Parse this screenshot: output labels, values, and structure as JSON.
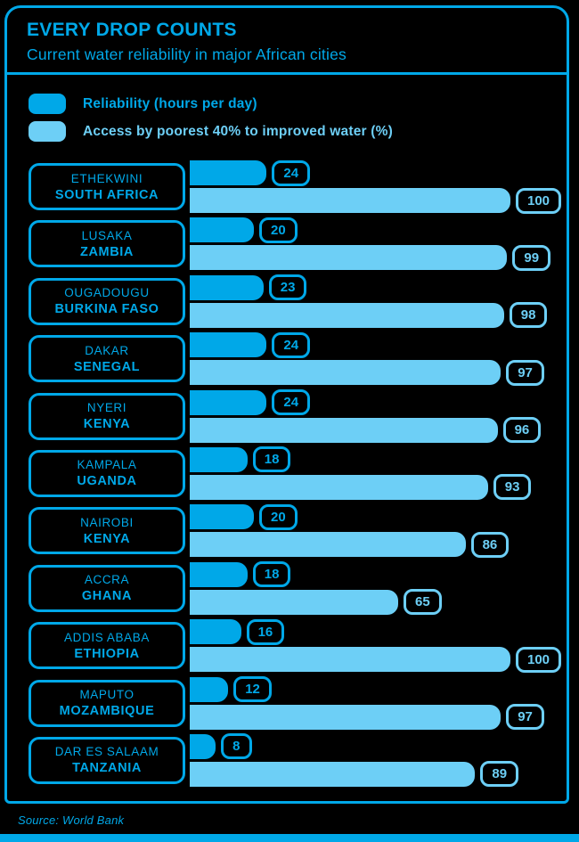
{
  "header": {
    "title": "EVERY DROP COUNTS",
    "subtitle": "Current water reliability in major African cities"
  },
  "legend": {
    "reliability_label": "Reliability (hours per day)",
    "access_label": "Access by poorest 40% to improved water (%)"
  },
  "chart_data": {
    "type": "bar",
    "orientation": "horizontal",
    "title": "EVERY DROP COUNTS",
    "subtitle": "Current water reliability in major African cities",
    "categories": [
      "ETHEKWINI, SOUTH AFRICA",
      "LUSAKA, ZAMBIA",
      "OUGADOUGU, BURKINA FASO",
      "DAKAR, SENEGAL",
      "NYERI, KENYA",
      "KAMPALA, UGANDA",
      "NAIROBI, KENYA",
      "ACCRA, GHANA",
      "ADDIS ABABA, ETHIOPIA",
      "MAPUTO, MOZAMBIQUE",
      "DAR ES SALAAM, TANZANIA"
    ],
    "series": [
      {
        "name": "Reliability (hours per day)",
        "values": [
          24,
          20,
          23,
          24,
          24,
          18,
          20,
          18,
          16,
          12,
          8
        ],
        "max": 24
      },
      {
        "name": "Access by poorest 40% to improved water (%)",
        "values": [
          100,
          99,
          98,
          97,
          96,
          93,
          86,
          65,
          100,
          97,
          89
        ],
        "max": 100
      }
    ],
    "value_axis_range": [
      0,
      100
    ],
    "grid": false,
    "legend_position": "top-left",
    "data_labels": "badge at end of each bar"
  },
  "rows": [
    {
      "city": "ETHEKWINI",
      "country": "SOUTH AFRICA",
      "hours": 24,
      "access": 100
    },
    {
      "city": "LUSAKA",
      "country": "ZAMBIA",
      "hours": 20,
      "access": 99
    },
    {
      "city": "OUGADOUGU",
      "country": "BURKINA FASO",
      "hours": 23,
      "access": 98
    },
    {
      "city": "DAKAR",
      "country": "SENEGAL",
      "hours": 24,
      "access": 97
    },
    {
      "city": "NYERI",
      "country": "KENYA",
      "hours": 24,
      "access": 96
    },
    {
      "city": "KAMPALA",
      "country": "UGANDA",
      "hours": 18,
      "access": 93
    },
    {
      "city": "NAIROBI",
      "country": "KENYA",
      "hours": 20,
      "access": 86
    },
    {
      "city": "ACCRA",
      "country": "GHANA",
      "hours": 18,
      "access": 65
    },
    {
      "city": "ADDIS ABABA",
      "country": "ETHIOPIA",
      "hours": 16,
      "access": 100
    },
    {
      "city": "MAPUTO",
      "country": "MOZAMBIQUE",
      "hours": 12,
      "access": 97
    },
    {
      "city": "DAR ES SALAAM",
      "country": "TANZANIA",
      "hours": 8,
      "access": 89
    }
  ],
  "footer": {
    "source": "Source: World Bank"
  },
  "colors": {
    "dark_blue": "#00A8E8",
    "light_blue": "#6DCFF6",
    "background": "#000000"
  }
}
